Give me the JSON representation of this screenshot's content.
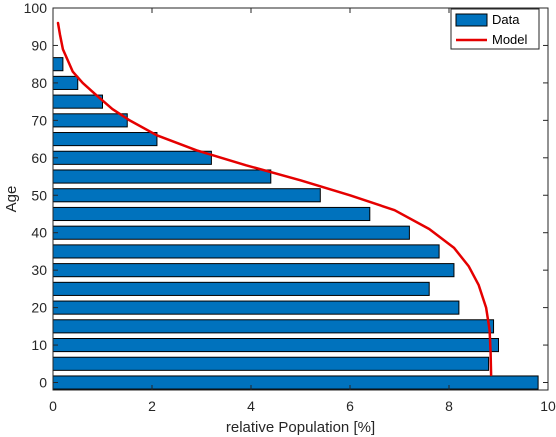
{
  "chart_data": {
    "type": "bar",
    "orientation": "horizontal",
    "xlabel": "relative Population [%]",
    "ylabel": "Age",
    "xlim": [
      0,
      10
    ],
    "ylim": [
      -2,
      100
    ],
    "xticks": [
      0,
      2,
      4,
      6,
      8,
      10
    ],
    "yticks": [
      0,
      10,
      20,
      30,
      40,
      50,
      60,
      70,
      80,
      90,
      100
    ],
    "grid": false,
    "legend_position": "top-right",
    "series": [
      {
        "name": "Data",
        "kind": "bar",
        "color": "#0072BD",
        "age": [
          0,
          5,
          10,
          15,
          20,
          25,
          30,
          35,
          40,
          45,
          50,
          55,
          60,
          65,
          70,
          75,
          80,
          85
        ],
        "values": [
          9.8,
          8.8,
          9.0,
          8.9,
          8.2,
          7.6,
          8.1,
          7.8,
          7.2,
          6.4,
          5.4,
          4.4,
          3.2,
          2.1,
          1.5,
          1.0,
          0.5,
          0.2
        ]
      },
      {
        "name": "Model",
        "kind": "line",
        "color": "#E50000",
        "points": [
          [
            8.85,
            2
          ],
          [
            8.84,
            8
          ],
          [
            8.82,
            14
          ],
          [
            8.75,
            20
          ],
          [
            8.6,
            26
          ],
          [
            8.4,
            31
          ],
          [
            8.1,
            36
          ],
          [
            7.6,
            41
          ],
          [
            6.9,
            46
          ],
          [
            6.0,
            50
          ],
          [
            5.0,
            54
          ],
          [
            3.9,
            58
          ],
          [
            2.9,
            62
          ],
          [
            2.1,
            66
          ],
          [
            1.55,
            70
          ],
          [
            1.2,
            73
          ],
          [
            0.85,
            77
          ],
          [
            0.6,
            80
          ],
          [
            0.4,
            83
          ],
          [
            0.3,
            86
          ],
          [
            0.2,
            89
          ],
          [
            0.14,
            93
          ],
          [
            0.1,
            96
          ]
        ]
      }
    ]
  }
}
